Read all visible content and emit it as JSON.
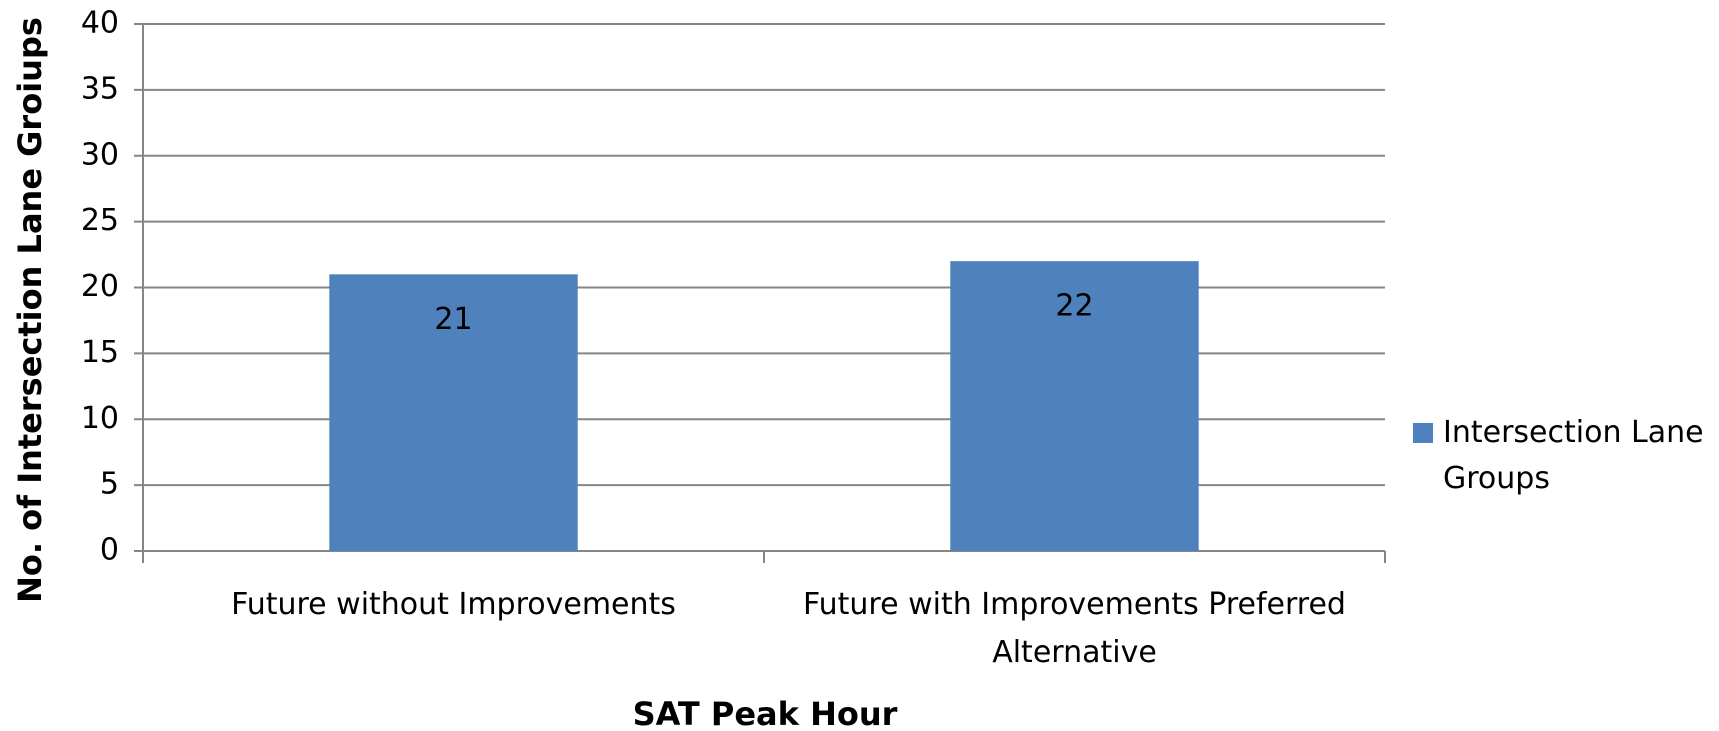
{
  "chart_data": {
    "type": "bar",
    "categories": [
      "Future without Improvements",
      "Future with Improvements Preferred Alternative"
    ],
    "series": [
      {
        "name": "Intersection Lane Groups",
        "color": "#4f81bd",
        "values": [
          21,
          22
        ]
      }
    ],
    "ylim": [
      0,
      40
    ],
    "yticks": [
      0,
      5,
      10,
      15,
      20,
      25,
      30,
      35,
      40
    ],
    "x_label": "SAT Peak Hour",
    "y_label": "No. of Intersection Lane Groiups",
    "grid": true,
    "legend": "right"
  }
}
